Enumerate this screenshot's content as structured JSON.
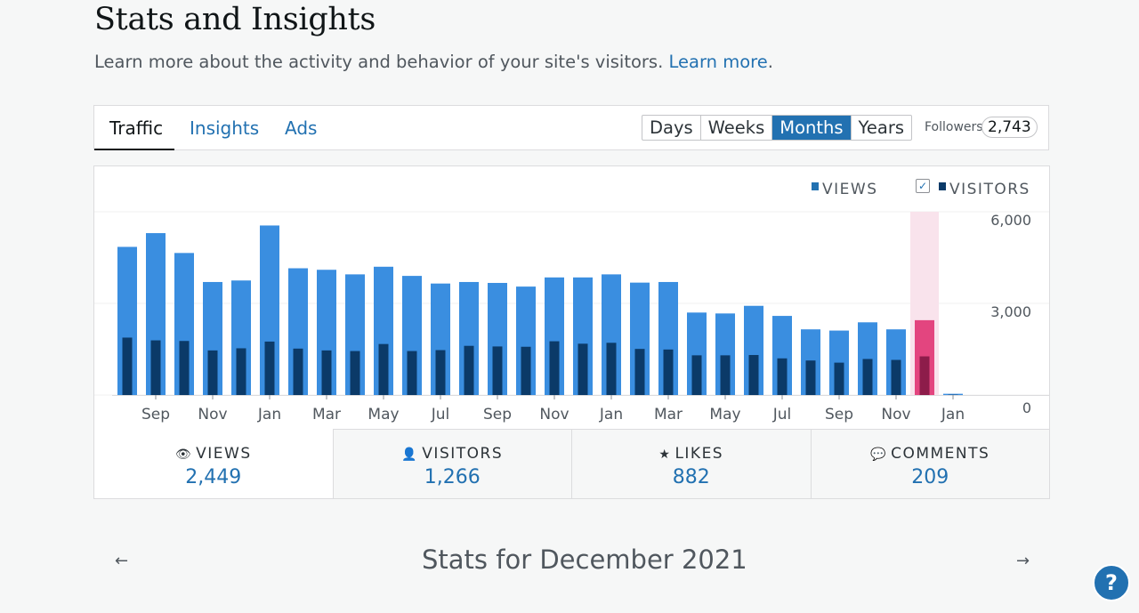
{
  "header": {
    "title": "Stats and Insights",
    "subtitle": "Learn more about the activity and behavior of your site's visitors.",
    "learn_more": "Learn more",
    "period_suffix": "."
  },
  "tabs": [
    {
      "label": "Traffic",
      "active": true
    },
    {
      "label": "Insights",
      "active": false
    },
    {
      "label": "Ads",
      "active": false
    }
  ],
  "periods": [
    "Days",
    "Weeks",
    "Months",
    "Years"
  ],
  "selected_period": "Months",
  "followers": {
    "label": "Followers",
    "count": "2,743"
  },
  "legend": {
    "views": "VIEWS",
    "visitors": "VISITORS",
    "visitors_checked": true
  },
  "colors": {
    "views": "#3a8ee0",
    "visitors": "#0b3a68",
    "highlight_views": "#e3457f",
    "highlight_visitors": "#8d1c4a",
    "highlight_band": "#f9e3ec",
    "accent": "#2271b1"
  },
  "chart_data": {
    "type": "bar",
    "y_tick_labels": [
      "6,000",
      "3,000",
      "0"
    ],
    "ylim": [
      0,
      6000
    ],
    "x_tick_labels": [
      "Sep",
      "Nov",
      "Jan",
      "Mar",
      "May",
      "Jul",
      "Sep",
      "Nov",
      "Jan",
      "Mar",
      "May",
      "Jul",
      "Sep",
      "Nov",
      "Jan"
    ],
    "series": [
      {
        "name": "VIEWS",
        "values": [
          4850,
          5300,
          4650,
          3700,
          3750,
          5550,
          4150,
          4100,
          3950,
          4200,
          3900,
          3650,
          3700,
          3670,
          3550,
          3850,
          3850,
          3950,
          3680,
          3700,
          2700,
          2670,
          2920,
          2590,
          2150,
          2110,
          2380,
          2150,
          2450,
          40
        ]
      },
      {
        "name": "VISITORS",
        "values": [
          1880,
          1790,
          1770,
          1460,
          1530,
          1750,
          1520,
          1460,
          1440,
          1670,
          1440,
          1470,
          1610,
          1590,
          1580,
          1760,
          1680,
          1710,
          1510,
          1490,
          1300,
          1300,
          1310,
          1200,
          1130,
          1060,
          1180,
          1150,
          1266,
          10
        ]
      }
    ],
    "highlight_index": 28
  },
  "summary": [
    {
      "icon": "eye-icon",
      "glyph": "👁",
      "label": "VIEWS",
      "value": "2,449"
    },
    {
      "icon": "person-icon",
      "glyph": "👤",
      "label": "VISITORS",
      "value": "1,266"
    },
    {
      "icon": "star-icon",
      "glyph": "★",
      "label": "LIKES",
      "value": "882"
    },
    {
      "icon": "comment-icon",
      "glyph": "💬",
      "label": "COMMENTS",
      "value": "209"
    }
  ],
  "period_nav": {
    "title": "Stats for December 2021",
    "prev": "←",
    "next": "→"
  },
  "help": "?"
}
